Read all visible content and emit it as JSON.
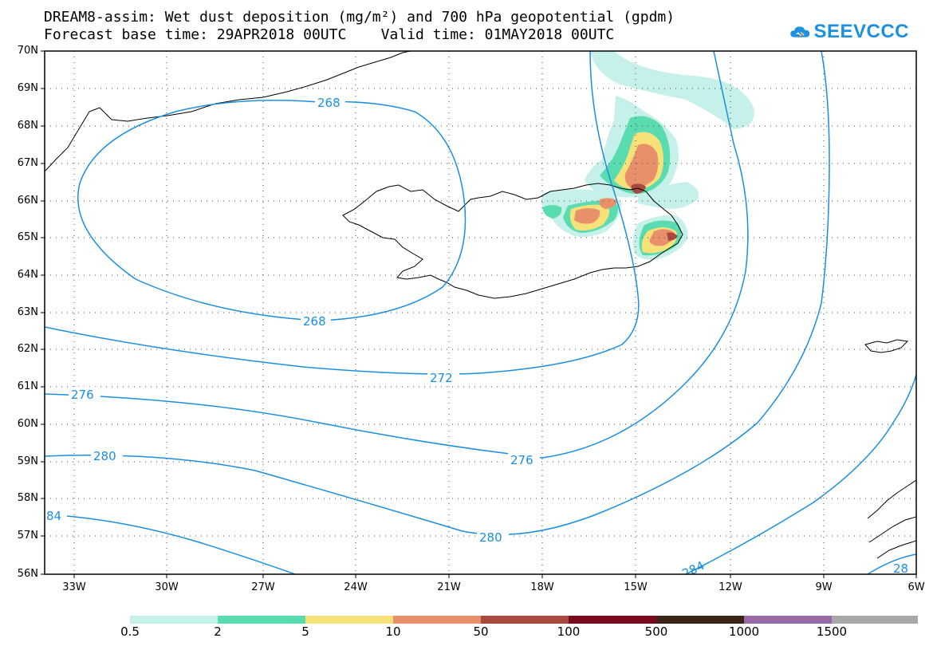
{
  "title": {
    "line1": "DREAM8-assim: Wet dust deposition (mg/m²) and 700 hPa geopotential (gpdm)",
    "line2": "Forecast base time: 29APR2018 00UTC    Valid time: 01MAY2018 00UTC"
  },
  "logo": {
    "text": "SEEVCCC",
    "icon": "cloud-icon",
    "color": "#1e90e0"
  },
  "map": {
    "lat_labels": [
      "70N",
      "69N",
      "68N",
      "67N",
      "66N",
      "65N",
      "64N",
      "63N",
      "62N",
      "61N",
      "60N",
      "59N",
      "58N",
      "57N",
      "56N"
    ],
    "lon_labels": [
      "33W",
      "30W",
      "27W",
      "24W",
      "21W",
      "18W",
      "15W",
      "12W",
      "9W",
      "6W"
    ],
    "contour_color": "#1a8fe0",
    "contour_labels": [
      "268",
      "268",
      "272",
      "276",
      "276",
      "280",
      "280",
      "84",
      "284",
      "28"
    ],
    "coastline_color": "#000000"
  },
  "colorbar": {
    "labels": [
      "0.5",
      "2",
      "5",
      "10",
      "50",
      "100",
      "500",
      "1000",
      "1500"
    ],
    "colors": [
      "#c6f0ea",
      "#5bdcb0",
      "#f7e27a",
      "#e8906a",
      "#a8483e",
      "#7a0a1e",
      "#3a2418",
      "#9a6aa6",
      "#a8a8a8"
    ]
  }
}
